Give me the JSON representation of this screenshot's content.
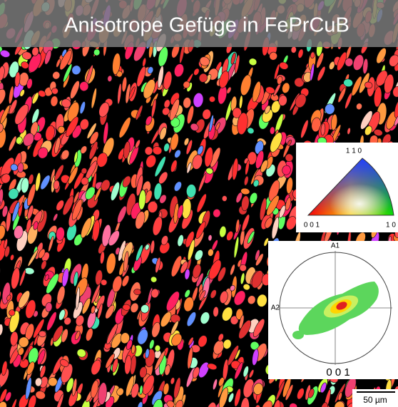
{
  "header": {
    "title": "Anisotrope Gefüge in FePrCuB"
  },
  "ipf_key": {
    "labels": [
      "1 1 0",
      "0 0 1",
      "1 0"
    ]
  },
  "pole_figure": {
    "labels": {
      "top": "A1",
      "left": "A2",
      "bottom": "0 0 1"
    }
  },
  "scale_bar": {
    "label": "50 µm"
  }
}
